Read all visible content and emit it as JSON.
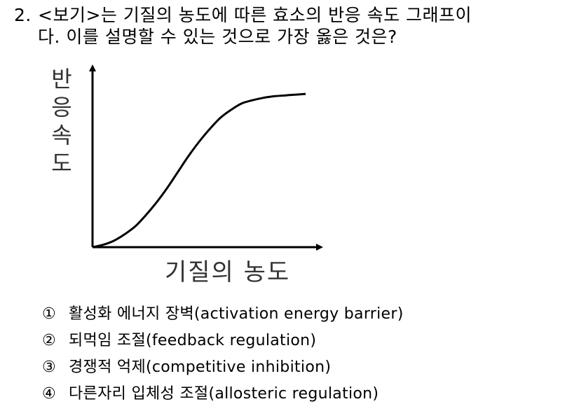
{
  "question": {
    "number": "2.",
    "line1": "<보기>는 기질의 농도에 따른 효소의 반응 속도 그래프이",
    "line2": "다. 이를 설명할 수 있는 것으로 가장 옳은 것은?"
  },
  "chart_data": {
    "type": "line",
    "ylabel": "반응속도",
    "xlabel": "기질의 농도",
    "grid": false,
    "legend": "none",
    "xlim": [
      0,
      1
    ],
    "ylim": [
      0,
      1
    ],
    "series": [
      {
        "x": [
          0.0,
          0.05,
          0.1,
          0.15,
          0.2,
          0.25,
          0.3,
          0.35,
          0.4,
          0.45,
          0.5,
          0.55,
          0.6,
          0.65,
          0.7,
          0.75,
          0.8,
          0.85,
          0.9,
          0.95,
          1.0
        ],
        "y": [
          0.0,
          0.015,
          0.04,
          0.08,
          0.13,
          0.2,
          0.28,
          0.37,
          0.47,
          0.57,
          0.66,
          0.74,
          0.81,
          0.86,
          0.9,
          0.92,
          0.935,
          0.945,
          0.95,
          0.955,
          0.96
        ]
      }
    ]
  },
  "choices": [
    {
      "mark": "①",
      "text": "활성화 에너지 장벽(activation energy barrier)"
    },
    {
      "mark": "②",
      "text": "되먹임 조절(feedback regulation)"
    },
    {
      "mark": "③",
      "text": "경쟁적 억제(competitive inhibition)"
    },
    {
      "mark": "④",
      "text": "다른자리 입체성 조절(allosteric regulation)"
    }
  ]
}
